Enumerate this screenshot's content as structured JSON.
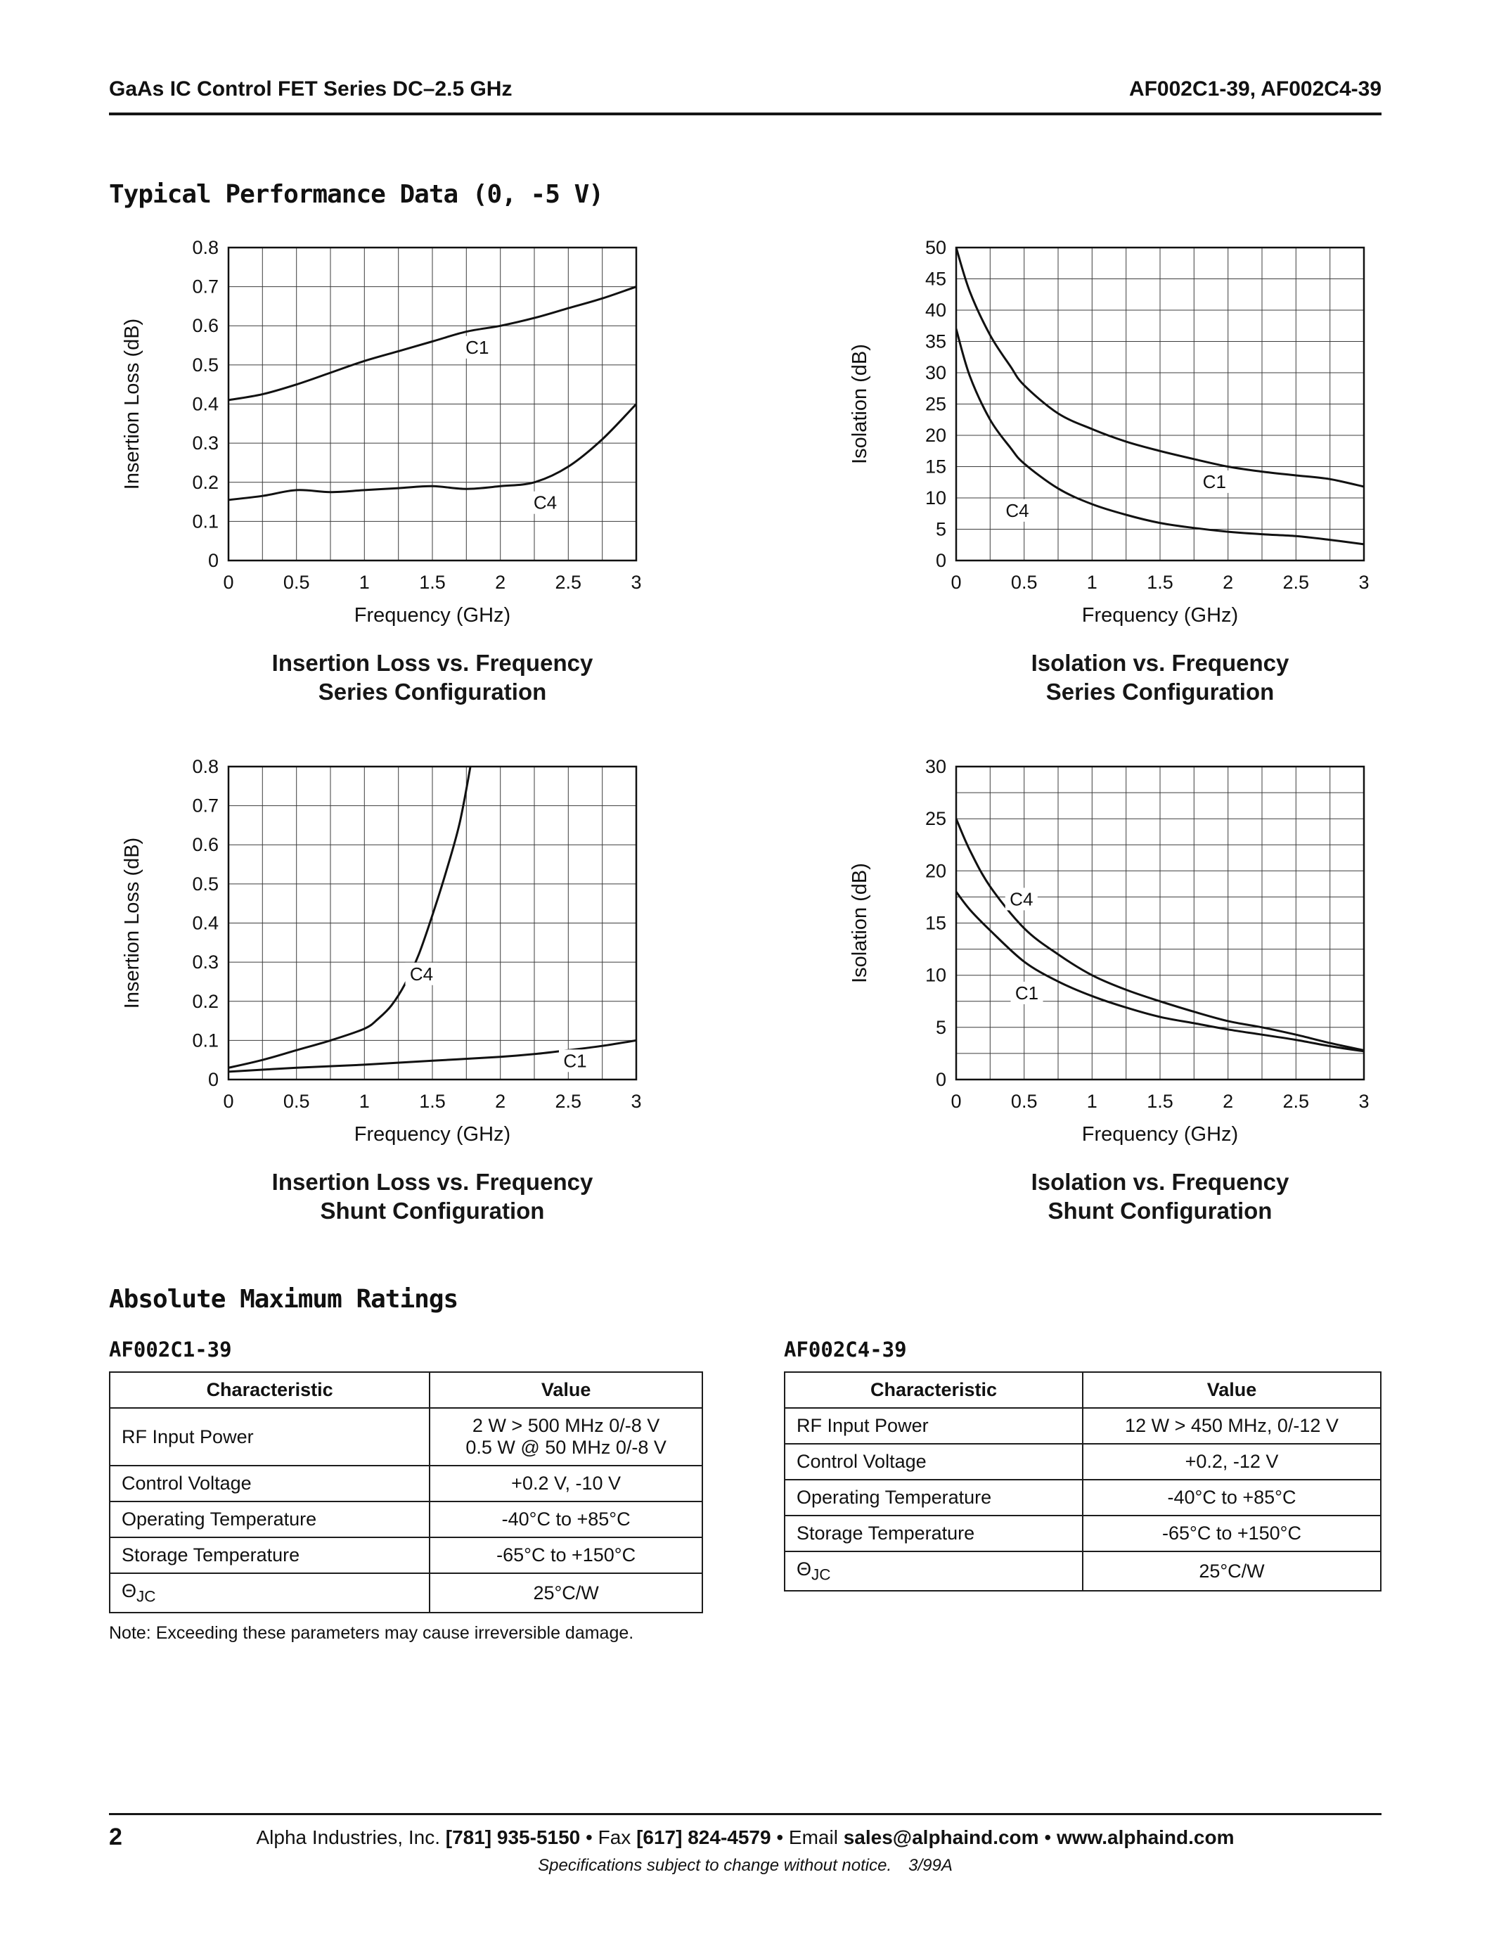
{
  "page": {
    "header_left": "GaAs IC Control FET Series DC–2.5 GHz",
    "header_right": "AF002C1-39, AF002C4-39",
    "perf_title": "Typical Performance Data (0, -5 V)",
    "amr_title": "Absolute Maximum Ratings",
    "note": "Note: Exceeding these parameters may cause irreversible damage.",
    "footer": {
      "page_number": "2",
      "segments": [
        {
          "text": "Alpha Industries, Inc. ",
          "bold": false
        },
        {
          "text": "[781] 935-5150",
          "bold": true
        },
        {
          "text": " • Fax ",
          "bold": false
        },
        {
          "text": "[617] 824-4579",
          "bold": true
        },
        {
          "text": " • Email ",
          "bold": false
        },
        {
          "text": "sales@alphaind.com",
          "bold": true
        },
        {
          "text": " • ",
          "bold": false
        },
        {
          "text": "www.alphaind.com",
          "bold": true
        }
      ],
      "sub_note": "Specifications subject to change without notice.",
      "sub_code": "3/99A"
    }
  },
  "chart_data": [
    {
      "type": "line",
      "title_lines": [
        "Insertion Loss vs. Frequency",
        "Series Configuration"
      ],
      "xlabel": "Frequency (GHz)",
      "ylabel": "Insertion Loss (dB)",
      "xlim": [
        0,
        3
      ],
      "ylim": [
        0,
        0.8
      ],
      "xtick_step": 0.5,
      "ytick_step": 0.1,
      "x_grid_step": 0.25,
      "y_grid_step": 0.1,
      "grid": true,
      "legend_position": "inline-labels",
      "series": [
        {
          "name": "C1",
          "label_at": [
            1.83,
            0.545
          ],
          "points": [
            [
              0,
              0.41
            ],
            [
              0.25,
              0.425
            ],
            [
              0.5,
              0.45
            ],
            [
              0.75,
              0.48
            ],
            [
              1,
              0.51
            ],
            [
              1.25,
              0.535
            ],
            [
              1.5,
              0.56
            ],
            [
              1.75,
              0.585
            ],
            [
              2,
              0.6
            ],
            [
              2.25,
              0.62
            ],
            [
              2.5,
              0.645
            ],
            [
              2.75,
              0.67
            ],
            [
              3,
              0.7
            ]
          ]
        },
        {
          "name": "C4",
          "label_at": [
            2.33,
            0.148
          ],
          "points": [
            [
              0,
              0.155
            ],
            [
              0.25,
              0.165
            ],
            [
              0.5,
              0.18
            ],
            [
              0.75,
              0.175
            ],
            [
              1,
              0.18
            ],
            [
              1.25,
              0.185
            ],
            [
              1.5,
              0.19
            ],
            [
              1.75,
              0.183
            ],
            [
              2,
              0.19
            ],
            [
              2.25,
              0.2
            ],
            [
              2.5,
              0.24
            ],
            [
              2.75,
              0.31
            ],
            [
              3,
              0.4
            ]
          ]
        }
      ]
    },
    {
      "type": "line",
      "title_lines": [
        "Isolation vs. Frequency",
        "Series Configuration"
      ],
      "xlabel": "Frequency (GHz)",
      "ylabel": "Isolation (dB)",
      "xlim": [
        0,
        3
      ],
      "ylim": [
        0,
        50
      ],
      "xtick_step": 0.5,
      "ytick_step": 5,
      "x_grid_step": 0.25,
      "y_grid_step": 5,
      "grid": true,
      "legend_position": "inline-labels",
      "series": [
        {
          "name": "C1",
          "label_at": [
            1.9,
            12.6
          ],
          "points": [
            [
              0,
              50
            ],
            [
              0.1,
              43
            ],
            [
              0.25,
              36
            ],
            [
              0.4,
              31
            ],
            [
              0.5,
              28
            ],
            [
              0.75,
              23.5
            ],
            [
              1,
              21
            ],
            [
              1.25,
              19
            ],
            [
              1.5,
              17.5
            ],
            [
              1.75,
              16.2
            ],
            [
              2,
              15
            ],
            [
              2.25,
              14.2
            ],
            [
              2.5,
              13.6
            ],
            [
              2.75,
              13
            ],
            [
              3,
              11.8
            ]
          ]
        },
        {
          "name": "C4",
          "label_at": [
            0.45,
            8
          ],
          "points": [
            [
              0,
              37
            ],
            [
              0.1,
              29.5
            ],
            [
              0.25,
              22.5
            ],
            [
              0.4,
              18
            ],
            [
              0.5,
              15.5
            ],
            [
              0.75,
              11.5
            ],
            [
              1,
              9
            ],
            [
              1.25,
              7.3
            ],
            [
              1.5,
              6
            ],
            [
              1.75,
              5.2
            ],
            [
              2,
              4.6
            ],
            [
              2.25,
              4.2
            ],
            [
              2.5,
              3.9
            ],
            [
              2.75,
              3.3
            ],
            [
              3,
              2.6
            ]
          ]
        }
      ]
    },
    {
      "type": "line",
      "title_lines": [
        "Insertion Loss vs. Frequency",
        "Shunt Configuration"
      ],
      "xlabel": "Frequency (GHz)",
      "ylabel": "Insertion Loss (dB)",
      "xlim": [
        0,
        3
      ],
      "ylim": [
        0,
        0.8
      ],
      "xtick_step": 0.5,
      "ytick_step": 0.1,
      "x_grid_step": 0.25,
      "y_grid_step": 0.1,
      "grid": true,
      "legend_position": "inline-labels",
      "series": [
        {
          "name": "C4",
          "label_at": [
            1.42,
            0.27
          ],
          "points": [
            [
              0,
              0.03
            ],
            [
              0.25,
              0.05
            ],
            [
              0.5,
              0.075
            ],
            [
              0.75,
              0.1
            ],
            [
              1,
              0.13
            ],
            [
              1.1,
              0.155
            ],
            [
              1.2,
              0.19
            ],
            [
              1.3,
              0.245
            ],
            [
              1.4,
              0.32
            ],
            [
              1.5,
              0.42
            ],
            [
              1.6,
              0.53
            ],
            [
              1.7,
              0.655
            ],
            [
              1.78,
              0.8
            ]
          ]
        },
        {
          "name": "C1",
          "label_at": [
            2.55,
            0.048
          ],
          "points": [
            [
              0,
              0.02
            ],
            [
              0.5,
              0.03
            ],
            [
              1,
              0.038
            ],
            [
              1.5,
              0.048
            ],
            [
              2,
              0.058
            ],
            [
              2.25,
              0.065
            ],
            [
              2.5,
              0.075
            ],
            [
              2.75,
              0.086
            ],
            [
              3,
              0.1
            ]
          ]
        }
      ]
    },
    {
      "type": "line",
      "title_lines": [
        "Isolation vs. Frequency",
        "Shunt Configuration"
      ],
      "xlabel": "Frequency (GHz)",
      "ylabel": "Isolation (dB)",
      "xlim": [
        0,
        3
      ],
      "ylim": [
        0,
        30
      ],
      "xtick_step": 0.5,
      "ytick_step": 5,
      "x_grid_step": 0.25,
      "y_grid_step": 2.5,
      "grid": true,
      "legend_position": "inline-labels",
      "series": [
        {
          "name": "C4",
          "label_at": [
            0.48,
            17.3
          ],
          "points": [
            [
              0,
              25
            ],
            [
              0.1,
              22
            ],
            [
              0.25,
              18.5
            ],
            [
              0.5,
              14.5
            ],
            [
              0.75,
              12
            ],
            [
              1,
              10
            ],
            [
              1.25,
              8.6
            ],
            [
              1.5,
              7.5
            ],
            [
              1.75,
              6.5
            ],
            [
              2,
              5.6
            ],
            [
              2.25,
              5
            ],
            [
              2.5,
              4.3
            ],
            [
              2.75,
              3.5
            ],
            [
              3,
              2.8
            ]
          ]
        },
        {
          "name": "C1",
          "label_at": [
            0.52,
            8.3
          ],
          "points": [
            [
              0,
              18
            ],
            [
              0.1,
              16.3
            ],
            [
              0.25,
              14.3
            ],
            [
              0.5,
              11.3
            ],
            [
              0.75,
              9.4
            ],
            [
              1,
              8
            ],
            [
              1.25,
              6.9
            ],
            [
              1.5,
              6
            ],
            [
              1.75,
              5.4
            ],
            [
              2,
              4.8
            ],
            [
              2.25,
              4.3
            ],
            [
              2.5,
              3.8
            ],
            [
              2.75,
              3.2
            ],
            [
              3,
              2.7
            ]
          ]
        }
      ]
    }
  ],
  "tables": [
    {
      "label": "AF002C1-39",
      "headers": [
        "Characteristic",
        "Value"
      ],
      "rows": [
        {
          "characteristic": "RF Input Power",
          "value_lines": [
            "2 W > 500 MHz 0/-8 V",
            "0.5 W @ 50 MHz 0/-8 V"
          ]
        },
        {
          "characteristic": "Control Voltage",
          "value_lines": [
            "+0.2 V, -10 V"
          ]
        },
        {
          "characteristic": "Operating Temperature",
          "value_lines": [
            "-40°C to +85°C"
          ]
        },
        {
          "characteristic": "Storage Temperature",
          "value_lines": [
            "-65°C to +150°C"
          ]
        },
        {
          "characteristic": "Θ",
          "characteristic_sub": "JC",
          "value_lines": [
            "25°C/W"
          ]
        }
      ]
    },
    {
      "label": "AF002C4-39",
      "headers": [
        "Characteristic",
        "Value"
      ],
      "rows": [
        {
          "characteristic": "RF Input Power",
          "value_lines": [
            "12 W > 450 MHz, 0/-12 V"
          ]
        },
        {
          "characteristic": "Control Voltage",
          "value_lines": [
            "+0.2, -12 V"
          ]
        },
        {
          "characteristic": "Operating Temperature",
          "value_lines": [
            "-40°C to +85°C"
          ]
        },
        {
          "characteristic": "Storage Temperature",
          "value_lines": [
            "-65°C to +150°C"
          ]
        },
        {
          "characteristic": "Θ",
          "characteristic_sub": "JC",
          "value_lines": [
            "25°C/W"
          ]
        }
      ]
    }
  ]
}
